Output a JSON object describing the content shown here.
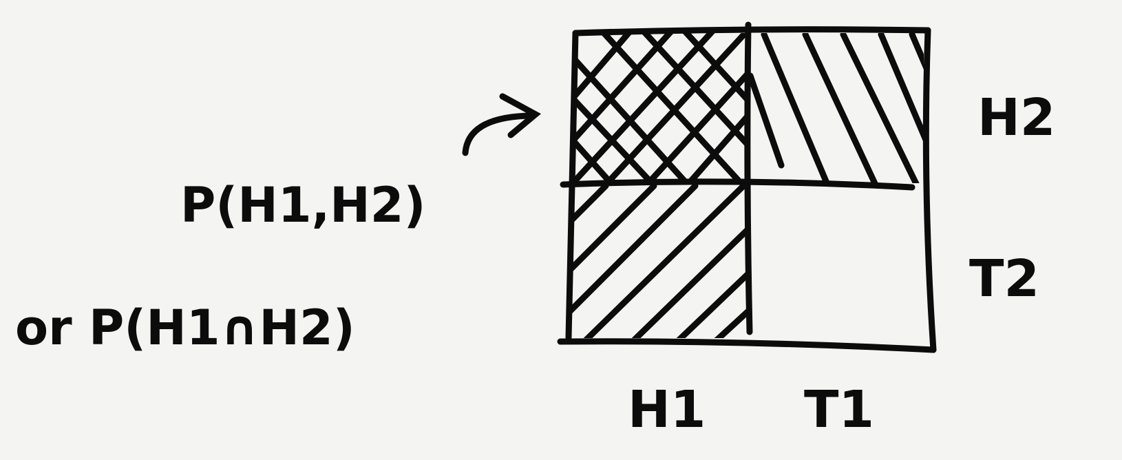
{
  "labels": {
    "row_top": "H2",
    "row_bottom": "T2",
    "col_left": "H1",
    "col_right": "T1"
  },
  "annotation": {
    "line1": "P(H1,H2)",
    "line2": "or P(H1∩H2)"
  },
  "colors": {
    "ink": "#0c0c0c",
    "paper": "#f4f4f2"
  }
}
